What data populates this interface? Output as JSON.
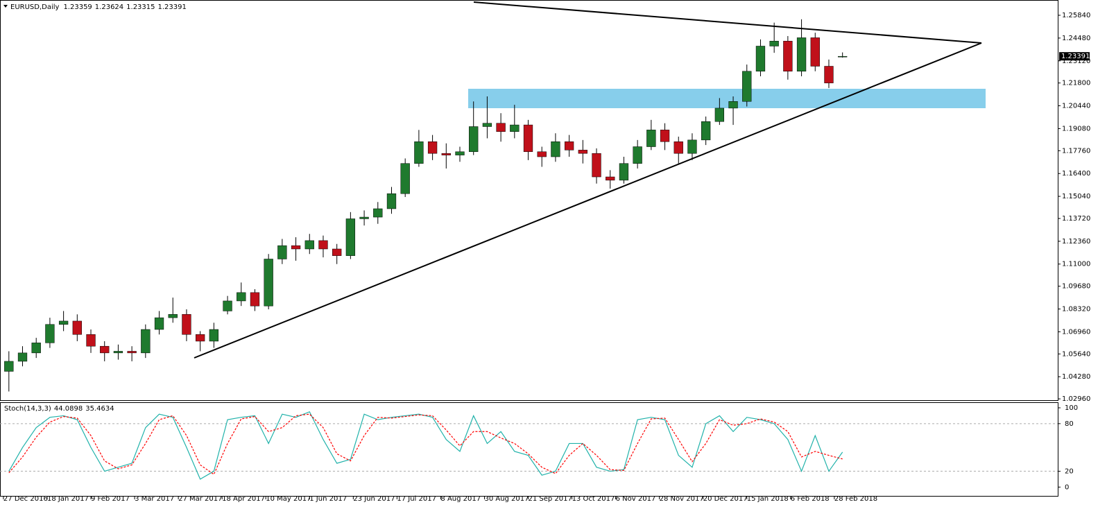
{
  "chart_data": [
    {
      "type": "candlestick",
      "title": "EURUSD,Daily",
      "open": [
        1.046,
        1.052,
        1.057,
        1.063,
        1.074,
        1.076,
        1.068,
        1.061,
        1.057,
        1.058,
        1.057,
        1.071,
        1.078,
        1.08,
        1.068,
        1.064,
        1.082,
        1.088,
        1.093,
        1.085,
        1.113,
        1.121,
        1.119,
        1.124,
        1.119,
        1.115,
        1.137,
        1.138,
        1.143,
        1.152,
        1.17,
        1.183,
        1.176,
        1.175,
        1.177,
        1.192,
        1.194,
        1.189,
        1.193,
        1.177,
        1.174,
        1.183,
        1.178,
        1.176,
        1.162,
        1.16,
        1.17,
        1.18,
        1.19,
        1.183,
        1.176,
        1.184,
        1.195,
        1.203,
        1.207,
        1.225,
        1.24,
        1.243,
        1.225,
        1.245,
        1.228,
        1.23359
      ],
      "high": [
        1.058,
        1.061,
        1.066,
        1.078,
        1.082,
        1.08,
        1.071,
        1.064,
        1.062,
        1.061,
        1.074,
        1.082,
        1.09,
        1.083,
        1.07,
        1.075,
        1.091,
        1.099,
        1.095,
        1.116,
        1.125,
        1.126,
        1.128,
        1.127,
        1.122,
        1.141,
        1.142,
        1.147,
        1.156,
        1.173,
        1.19,
        1.187,
        1.182,
        1.18,
        1.207,
        1.21,
        1.2,
        1.205,
        1.196,
        1.18,
        1.188,
        1.187,
        1.184,
        1.179,
        1.166,
        1.174,
        1.184,
        1.196,
        1.194,
        1.186,
        1.188,
        1.198,
        1.209,
        1.21,
        1.229,
        1.244,
        1.254,
        1.246,
        1.256,
        1.248,
        1.232,
        1.23624
      ],
      "low": [
        1.034,
        1.049,
        1.054,
        1.06,
        1.07,
        1.064,
        1.057,
        1.052,
        1.053,
        1.052,
        1.054,
        1.068,
        1.075,
        1.064,
        1.058,
        1.06,
        1.08,
        1.085,
        1.082,
        1.083,
        1.11,
        1.112,
        1.116,
        1.114,
        1.11,
        1.113,
        1.133,
        1.134,
        1.14,
        1.15,
        1.168,
        1.172,
        1.167,
        1.171,
        1.175,
        1.185,
        1.183,
        1.185,
        1.172,
        1.168,
        1.171,
        1.174,
        1.17,
        1.158,
        1.155,
        1.158,
        1.167,
        1.178,
        1.178,
        1.17,
        1.172,
        1.181,
        1.193,
        1.193,
        1.204,
        1.222,
        1.236,
        1.22,
        1.222,
        1.225,
        1.215,
        1.23315
      ],
      "close": [
        1.052,
        1.057,
        1.063,
        1.074,
        1.076,
        1.068,
        1.061,
        1.057,
        1.058,
        1.057,
        1.071,
        1.078,
        1.08,
        1.068,
        1.064,
        1.071,
        1.088,
        1.093,
        1.085,
        1.113,
        1.121,
        1.119,
        1.124,
        1.119,
        1.115,
        1.137,
        1.138,
        1.143,
        1.152,
        1.17,
        1.183,
        1.176,
        1.175,
        1.177,
        1.192,
        1.194,
        1.189,
        1.193,
        1.177,
        1.174,
        1.183,
        1.178,
        1.176,
        1.162,
        1.16,
        1.17,
        1.18,
        1.19,
        1.183,
        1.176,
        1.184,
        1.195,
        1.203,
        1.207,
        1.225,
        1.24,
        1.243,
        1.225,
        1.245,
        1.228,
        1.218,
        1.23391
      ],
      "up_color": "#1f7a2e",
      "down_color": "#c0101a",
      "wick_color": "#000000",
      "xlim": [
        -0.65,
        76.75
      ],
      "ylim": [
        1.0284,
        1.2675
      ],
      "yticks": [
        {
          "value": 1.2584,
          "label": "1.25840"
        },
        {
          "value": 1.2448,
          "label": "1.24480"
        },
        {
          "value": 1.2312,
          "label": "1.23120"
        },
        {
          "value": 1.218,
          "label": "1.21800"
        },
        {
          "value": 1.2044,
          "label": "1.20440"
        },
        {
          "value": 1.1908,
          "label": "1.19080"
        },
        {
          "value": 1.1776,
          "label": "1.17760"
        },
        {
          "value": 1.164,
          "label": "1.16400"
        },
        {
          "value": 1.1504,
          "label": "1.15040"
        },
        {
          "value": 1.1372,
          "label": "1.13720"
        },
        {
          "value": 1.1236,
          "label": "1.12360"
        },
        {
          "value": 1.11,
          "label": "1.11000"
        },
        {
          "value": 1.0968,
          "label": "1.09680"
        },
        {
          "value": 1.0832,
          "label": "1.08320"
        },
        {
          "value": 1.0696,
          "label": "1.06960"
        },
        {
          "value": 1.0564,
          "label": "1.05640"
        },
        {
          "value": 1.0428,
          "label": "1.04280"
        },
        {
          "value": 1.0296,
          "label": "1.02960"
        }
      ]
    },
    {
      "type": "line",
      "title": "Stoch(14,3,3)",
      "series": [
        {
          "color": "#20b2aa",
          "values": [
            20,
            50,
            75,
            88,
            90,
            85,
            50,
            20,
            25,
            30,
            75,
            92,
            88,
            50,
            10,
            20,
            85,
            88,
            90,
            55,
            92,
            88,
            95,
            60,
            30,
            35,
            92,
            85,
            88,
            90,
            92,
            88,
            60,
            45,
            90,
            55,
            70,
            45,
            40,
            15,
            20,
            55,
            55,
            25,
            20,
            22,
            85,
            88,
            85,
            40,
            25,
            80,
            90,
            70,
            88,
            85,
            80,
            60,
            20,
            65,
            20,
            44.0898
          ]
        },
        {
          "color": "#ff0000",
          "dashed": true,
          "values": [
            18,
            38,
            63,
            82,
            89,
            87,
            65,
            33,
            23,
            28,
            55,
            85,
            90,
            65,
            28,
            16,
            55,
            86,
            89,
            70,
            75,
            90,
            92,
            75,
            42,
            33,
            65,
            88,
            87,
            89,
            91,
            90,
            72,
            52,
            70,
            70,
            62,
            55,
            42,
            25,
            17,
            40,
            55,
            40,
            22,
            21,
            55,
            86,
            87,
            60,
            32,
            55,
            85,
            78,
            80,
            86,
            82,
            70,
            38,
            45,
            40,
            35.4634
          ]
        }
      ],
      "levels": [
        80,
        20
      ],
      "xlim": [
        -0.65,
        76.75
      ],
      "ylim": [
        -12,
        107
      ],
      "yticks": [
        100,
        80,
        20,
        0
      ],
      "xticks": [
        {
          "value": -0.4,
          "label": "27 Dec 2016"
        },
        {
          "value": 2.8,
          "label": "18 Jan 2017"
        },
        {
          "value": 6,
          "label": "9 Feb 2017"
        },
        {
          "value": 9.2,
          "label": "3 Mar 2017"
        },
        {
          "value": 12.4,
          "label": "27 Mar 2017"
        },
        {
          "value": 15.6,
          "label": "18 Apr 2017"
        },
        {
          "value": 18.8,
          "label": "10 May 2017"
        },
        {
          "value": 22,
          "label": "1 Jun 2017"
        },
        {
          "value": 25.2,
          "label": "23 Jun 2017"
        },
        {
          "value": 28.4,
          "label": "17 Jul 2017"
        },
        {
          "value": 31.6,
          "label": "8 Aug 2017"
        },
        {
          "value": 34.8,
          "label": "30 Aug 2017"
        },
        {
          "value": 38,
          "label": "21 Sep 2017"
        },
        {
          "value": 41.2,
          "label": "13 Oct 2017"
        },
        {
          "value": 44.4,
          "label": "6 Nov 2017"
        },
        {
          "value": 47.6,
          "label": "28 Nov 2017"
        },
        {
          "value": 50.8,
          "label": "20 Dec 2017"
        },
        {
          "value": 54,
          "label": "15 Jan 2018"
        },
        {
          "value": 57.2,
          "label": "6 Feb 2018"
        },
        {
          "value": 60.4,
          "label": "28 Feb 2018"
        }
      ]
    }
  ]
}
